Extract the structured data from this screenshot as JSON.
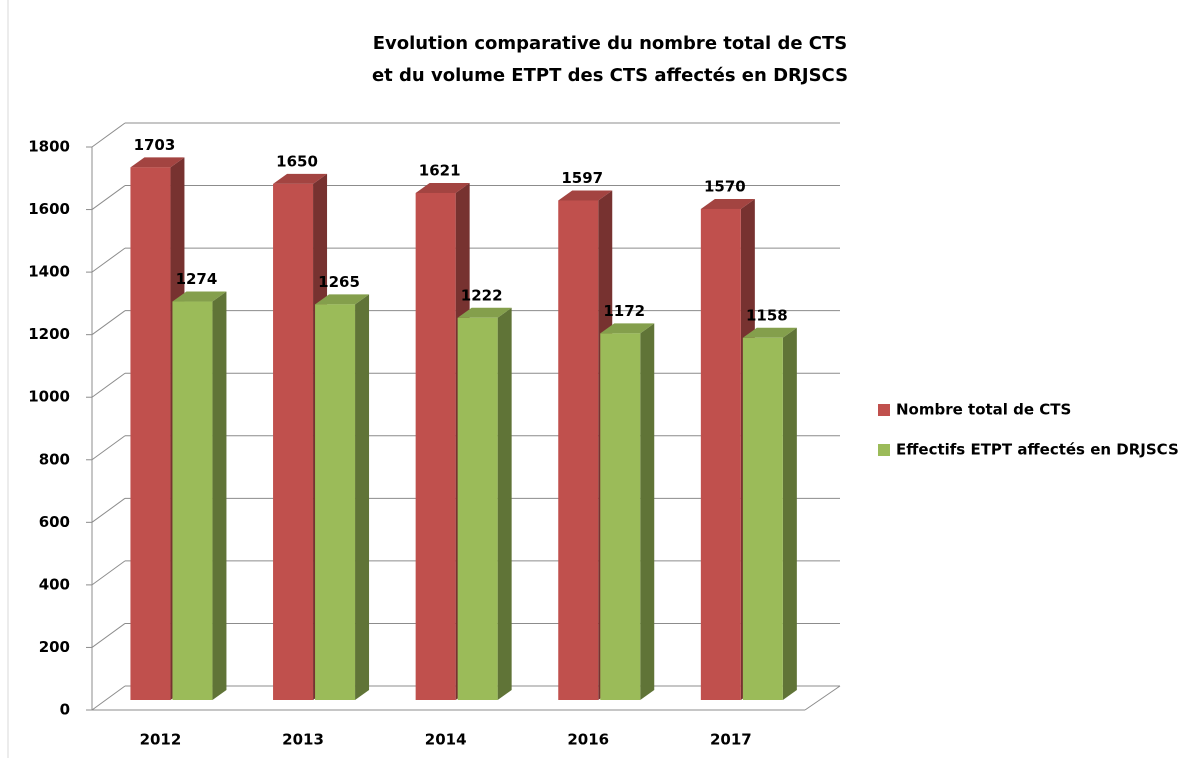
{
  "chart_data": {
    "type": "bar3d",
    "title": [
      "Evolution comparative du nombre total de CTS",
      "et du volume ETPT des CTS affectés en DRJSCS"
    ],
    "categories": [
      "2012",
      "2013",
      "2014",
      "2016",
      "2017"
    ],
    "series": [
      {
        "name": "Nombre total de CTS",
        "color": "#c0504d",
        "values": [
          1703,
          1650,
          1621,
          1597,
          1570
        ]
      },
      {
        "name": "Effectifs ETPT affectés en DRJSCS",
        "color": "#9bbb59",
        "values": [
          1274,
          1265,
          1222,
          1172,
          1158
        ]
      }
    ],
    "ylim": [
      0,
      1800
    ],
    "yticks": [
      0,
      200,
      400,
      600,
      800,
      1000,
      1200,
      1400,
      1600,
      1800
    ],
    "grid": true,
    "legend": "right"
  }
}
